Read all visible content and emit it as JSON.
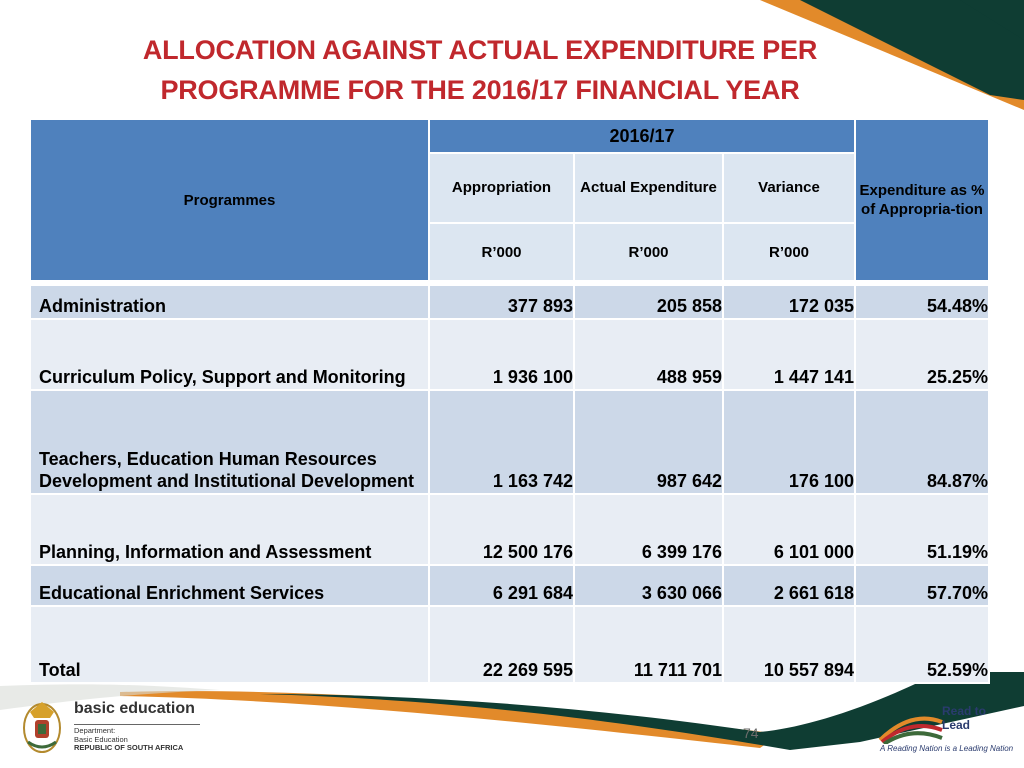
{
  "title": {
    "line1": "ALLOCATION AGAINST ACTUAL EXPENDITURE PER",
    "line2": "PROGRAMME FOR THE 2016/17 FINANCIAL YEAR"
  },
  "table": {
    "headers": {
      "programmes": "Programmes",
      "year": "2016/17",
      "appropriation": "Appropriation",
      "actual_expenditure": "Actual Expenditure",
      "variance": "Variance",
      "expenditure_pct": "Expenditure as % of Appropria-tion",
      "unit": "R’000"
    },
    "rows": [
      {
        "programme": "Administration",
        "appropriation": "377 893",
        "actual": "205 858",
        "variance": "172 035",
        "pct": "54.48%"
      },
      {
        "programme": "Curriculum Policy, Support and Monitoring",
        "appropriation": "1 936 100",
        "actual": "488 959",
        "variance": "1 447 141",
        "pct": "25.25%"
      },
      {
        "programme": "Teachers, Education Human Resources Development and Institutional Development",
        "appropriation": "1 163 742",
        "actual": "987 642",
        "variance": "176 100",
        "pct": "84.87%"
      },
      {
        "programme": "Planning, Information and Assessment",
        "appropriation": "12 500 176",
        "actual": "6 399 176",
        "variance": "6 101 000",
        "pct": "51.19%"
      },
      {
        "programme": "Educational Enrichment Services",
        "appropriation": "6 291 684",
        "actual": "3 630 066",
        "variance": "2 661 618",
        "pct": "57.70%"
      },
      {
        "programme": "Total",
        "appropriation": "22 269 595",
        "actual": "11 711 701",
        "variance": "10 557 894",
        "pct": "52.59%"
      }
    ]
  },
  "footer": {
    "page_number": "74",
    "left_logo": {
      "name": "basic education",
      "line1": "Department:",
      "line2": "Basic Education",
      "line3": "REPUBLIC OF SOUTH AFRICA"
    },
    "right_logo": {
      "title": "Read to Lead",
      "tagline": "A Reading Nation is a Leading Nation"
    }
  },
  "colors": {
    "title": "#c0282d",
    "header_blue": "#4f81bd",
    "header_light": "#dce6f1",
    "row_dark": "#ccd8e8",
    "row_light": "#e8edf4",
    "deco_green": "#0f3d33",
    "deco_orange": "#e28a2a"
  }
}
